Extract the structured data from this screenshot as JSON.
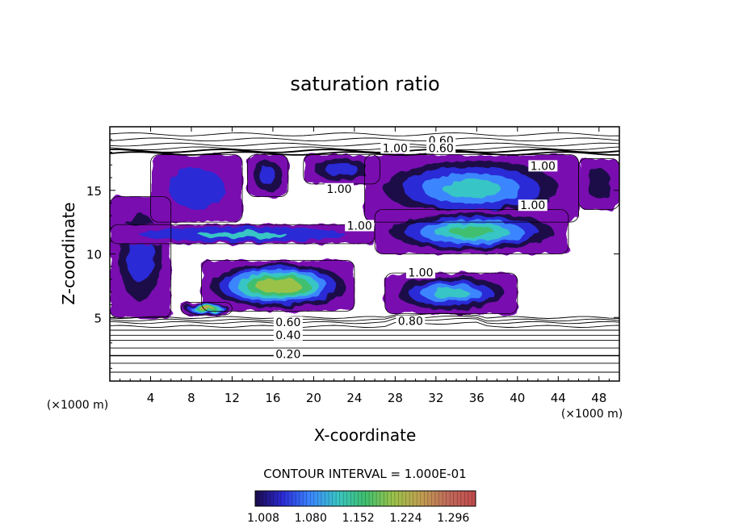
{
  "chart_data": {
    "type": "heatmap",
    "title": "saturation ratio",
    "xlabel": "X-coordinate",
    "ylabel": "Z-coordinate",
    "x_unit": "(×1000 m)",
    "z_unit": "(×1000 m)",
    "xlim": [
      0,
      50
    ],
    "ylim": [
      0,
      20
    ],
    "x_ticks": [
      "4",
      "8",
      "12",
      "16",
      "20",
      "24",
      "28",
      "32",
      "36",
      "40",
      "44",
      "48"
    ],
    "y_ticks": [
      "5",
      "10",
      "15"
    ],
    "contour_interval_text": "CONTOUR INTERVAL = 1.000E-01",
    "colorbar": {
      "ticks": [
        "1.008",
        "1.080",
        "1.152",
        "1.224",
        "1.296"
      ],
      "colors": [
        "#1a0a4a",
        "#2b2bd6",
        "#3a86ff",
        "#39c5c5",
        "#3fbf6f",
        "#9ac24a",
        "#c0a050",
        "#c06a5a",
        "#c24a4a"
      ]
    },
    "contour_labels": [
      {
        "text": "0.60",
        "x": 32.5,
        "y": 18.8
      },
      {
        "text": "1.00",
        "x": 28.0,
        "y": 18.2
      },
      {
        "text": "0.60",
        "x": 32.5,
        "y": 18.2
      },
      {
        "text": "1.00",
        "x": 42.5,
        "y": 16.8
      },
      {
        "text": "1.00",
        "x": 22.5,
        "y": 15.0
      },
      {
        "text": "1.00",
        "x": 41.5,
        "y": 13.7
      },
      {
        "text": "1.00",
        "x": 24.5,
        "y": 12.1
      },
      {
        "text": "1.00",
        "x": 30.5,
        "y": 8.4
      },
      {
        "text": "0.60",
        "x": 17.5,
        "y": 4.5
      },
      {
        "text": "0.80",
        "x": 29.5,
        "y": 4.6
      },
      {
        "text": "0.40",
        "x": 17.5,
        "y": 3.5
      },
      {
        "text": "0.20",
        "x": 17.5,
        "y": 2.0
      }
    ],
    "supersaturated_regions": [
      {
        "x": [
          0.0,
          6.0
        ],
        "z": [
          5.0,
          14.5
        ],
        "max_ratio": 1.05
      },
      {
        "x": [
          4.0,
          13.0
        ],
        "z": [
          12.5,
          17.8
        ],
        "max_ratio": 1.04
      },
      {
        "x": [
          13.5,
          17.5
        ],
        "z": [
          14.5,
          17.8
        ],
        "max_ratio": 1.05
      },
      {
        "x": [
          19.0,
          26.5
        ],
        "z": [
          15.5,
          17.8
        ],
        "max_ratio": 1.06
      },
      {
        "x": [
          0.0,
          26.0
        ],
        "z": [
          10.8,
          12.3
        ],
        "max_ratio": 1.1
      },
      {
        "x": [
          25.0,
          46.0
        ],
        "z": [
          12.5,
          17.8
        ],
        "max_ratio": 1.12
      },
      {
        "x": [
          26.0,
          45.0
        ],
        "z": [
          10.0,
          13.5
        ],
        "max_ratio": 1.15
      },
      {
        "x": [
          9.0,
          24.0
        ],
        "z": [
          5.5,
          9.5
        ],
        "max_ratio": 1.2
      },
      {
        "x": [
          27.0,
          40.0
        ],
        "z": [
          5.3,
          8.5
        ],
        "max_ratio": 1.12
      },
      {
        "x": [
          7.0,
          12.0
        ],
        "z": [
          5.2,
          6.2
        ],
        "max_ratio": 1.22
      },
      {
        "x": [
          46.0,
          50.0
        ],
        "z": [
          13.5,
          17.5
        ],
        "max_ratio": 1.03
      }
    ]
  }
}
